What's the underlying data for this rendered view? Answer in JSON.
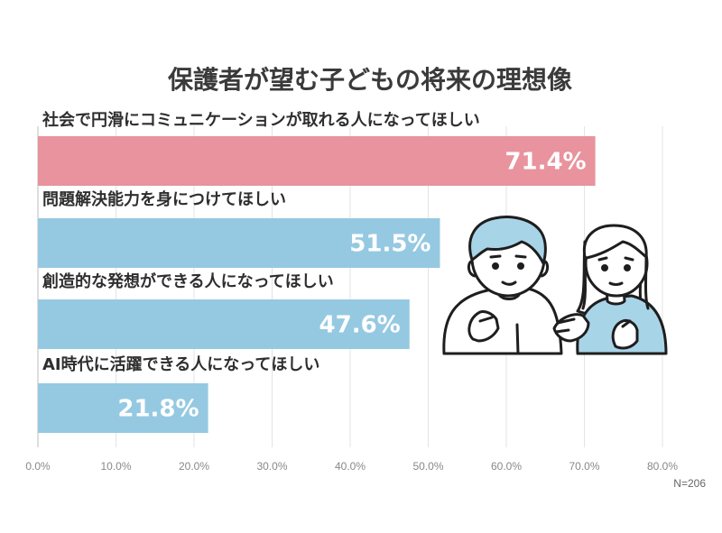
{
  "chart_data": {
    "type": "bar",
    "orientation": "horizontal",
    "title": "保護者が望む子どもの将来の理想像",
    "categories": [
      "社会で円滑にコミュニケーションが取れる人になってほしい",
      "問題解決能力を身につけてほしい",
      "創造的な発想ができる人になってほしい",
      "AI時代に活躍できる人になってほしい"
    ],
    "values": [
      71.4,
      51.5,
      47.6,
      21.8
    ],
    "value_labels": [
      "71.4%",
      "51.5%",
      "47.6%",
      "21.8%"
    ],
    "bar_colors": [
      "#e8939d",
      "#95c9e2",
      "#95c9e2",
      "#95c9e2"
    ],
    "xlim": [
      0,
      80
    ],
    "x_ticks": [
      0,
      10,
      20,
      30,
      40,
      50,
      60,
      70,
      80
    ],
    "x_tick_labels": [
      "0.0%",
      "10.0%",
      "20.0%",
      "30.0%",
      "40.0%",
      "50.0%",
      "60.0%",
      "70.0%",
      "80.0%"
    ],
    "grid": true,
    "xlabel": "",
    "ylabel": "",
    "note": "N=206"
  },
  "colors": {
    "highlight_bar": "#e8939d",
    "normal_bar": "#95c9e2",
    "illustration_shirt": "#a8d4e8",
    "illustration_hair": "#a8d4e8"
  },
  "illustration": {
    "icon": "two-people-talking-illustration"
  }
}
